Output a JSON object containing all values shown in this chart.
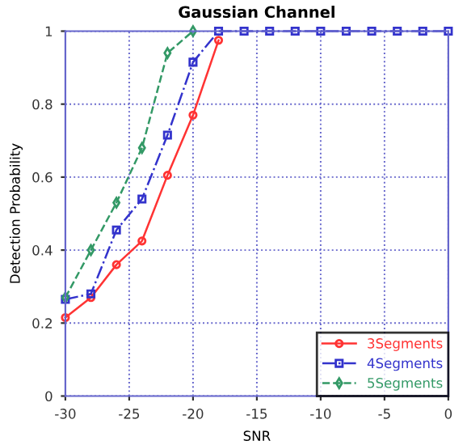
{
  "chart_data": {
    "type": "line",
    "title": "Gaussian Channel",
    "xlabel": "SNR",
    "ylabel": "Detection Probability",
    "x": [
      -30,
      -28,
      -26,
      -24,
      -22,
      -20,
      -18,
      -16,
      -14,
      -12,
      -10,
      -8,
      -6,
      -4,
      -2,
      0
    ],
    "series": [
      {
        "name": "3Segments",
        "color": "#ff3333",
        "marker": "circle",
        "line_style": "solid",
        "values": [
          0.215,
          0.27,
          0.36,
          0.425,
          0.605,
          0.77,
          0.975,
          null,
          null,
          null,
          null,
          null,
          null,
          null,
          null,
          null
        ]
      },
      {
        "name": "4Segments",
        "color": "#3333cc",
        "marker": "square",
        "line_style": "dashdot",
        "values": [
          0.265,
          0.28,
          0.455,
          0.54,
          0.715,
          0.915,
          1,
          1,
          1,
          1,
          1,
          1,
          1,
          1,
          1,
          1
        ]
      },
      {
        "name": "5Segments",
        "color": "#339966",
        "marker": "diamond",
        "line_style": "dashed",
        "values": [
          0.27,
          0.4,
          0.53,
          0.68,
          0.94,
          1,
          null,
          null,
          null,
          null,
          null,
          null,
          null,
          null,
          null,
          null
        ]
      }
    ],
    "xlim": [
      -30,
      0
    ],
    "xticks": [
      -30,
      -25,
      -20,
      -15,
      -10,
      -5,
      0
    ],
    "ylim": [
      0,
      1
    ],
    "yticks": [
      0,
      0.2,
      0.4,
      0.6,
      0.8,
      1
    ],
    "grid": true,
    "legend": "bottom right"
  }
}
